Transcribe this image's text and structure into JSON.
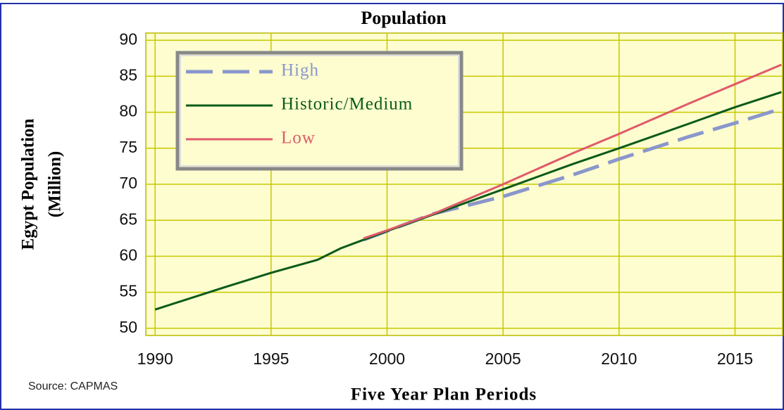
{
  "chart_data": {
    "type": "line",
    "title": "Population",
    "ylabel": [
      "Egypt Population",
      "(Million)"
    ],
    "xlabel": "Five Year Plan Periods",
    "source": "Source: CAPMAS",
    "xlim": [
      1989.6,
      2017.05
    ],
    "ylim": [
      49,
      91
    ],
    "xticks": [
      1990,
      1995,
      2000,
      2005,
      2010,
      2015
    ],
    "yticks": [
      50,
      55,
      60,
      65,
      70,
      75,
      80,
      85,
      90
    ],
    "grid": true,
    "legend": "upper left",
    "series": [
      {
        "name": "High",
        "color": "#8a97cc",
        "dash": true,
        "x": [
          1999,
          2002,
          2005,
          2008,
          2010,
          2013,
          2015,
          2016.8
        ],
        "values": [
          62.3,
          65.9,
          68.3,
          71.3,
          73.5,
          76.6,
          78.5,
          80.3
        ]
      },
      {
        "name": "Historic/Medium",
        "color": "#0a5a1a",
        "dash": false,
        "x": [
          1990,
          1993,
          1995,
          1997,
          1998,
          2000,
          2002,
          2005,
          2008,
          2010,
          2013,
          2015,
          2017
        ],
        "values": [
          52.6,
          55.7,
          57.7,
          59.5,
          61.1,
          63.5,
          65.8,
          69.3,
          72.8,
          75.0,
          78.4,
          80.7,
          82.8
        ]
      },
      {
        "name": "Low",
        "color": "#e05a6a",
        "dash": false,
        "x": [
          1999,
          2000,
          2002,
          2005,
          2008,
          2010,
          2013,
          2015,
          2017
        ],
        "values": [
          62.5,
          63.6,
          65.9,
          70.0,
          74.3,
          77.0,
          81.2,
          83.9,
          86.6
        ]
      }
    ]
  }
}
